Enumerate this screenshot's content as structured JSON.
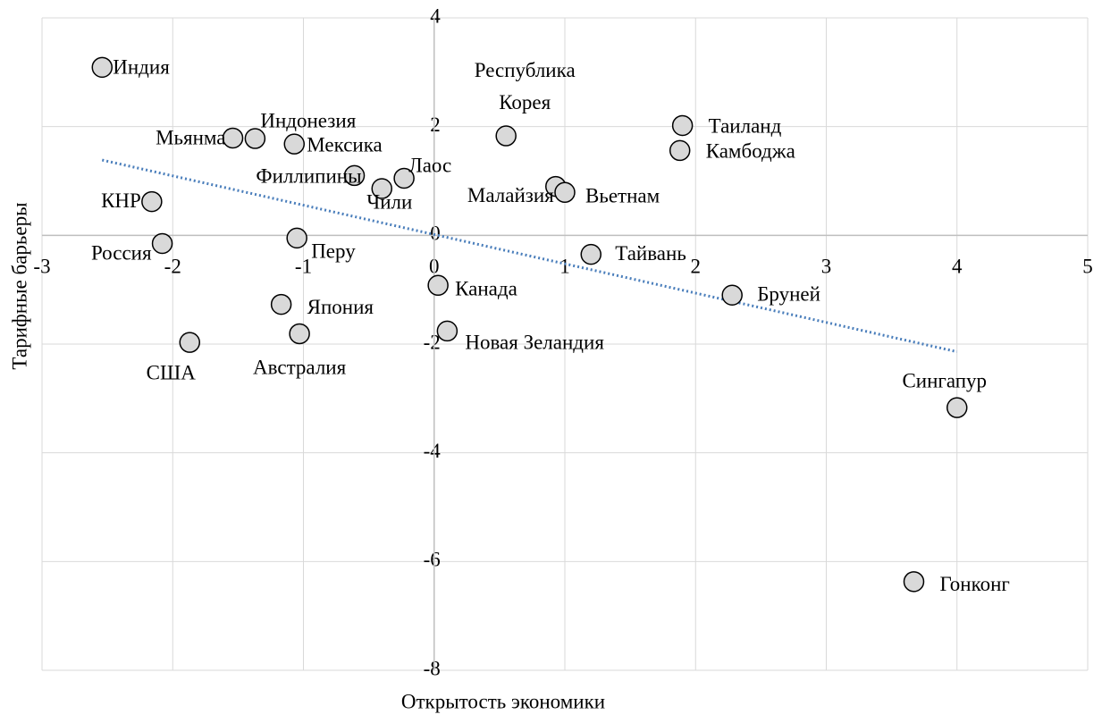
{
  "chart_data": {
    "type": "scatter",
    "x_label": "Открытость экономики",
    "y_label": "Тарифные барьеры",
    "labels": [
      "Индия",
      "Мьянма",
      "Индонезия",
      "Мексика",
      "Филлипины",
      "Чили",
      "Лаос",
      "Республика Корея",
      "Малайзия",
      "Вьетнам",
      "Таиланд",
      "Камбоджа",
      "КНР",
      "Россия",
      "Перу",
      "Тайвань",
      "Канада",
      "Бруней",
      "Япония",
      "Австралия",
      "США",
      "Новая Зеландия",
      "Сингапур",
      "Гонконг"
    ],
    "x": [
      -2.54,
      -1.54,
      -1.37,
      -1.07,
      -0.61,
      -0.4,
      -0.23,
      0.55,
      0.93,
      1.0,
      1.9,
      1.88,
      -2.16,
      -2.08,
      -1.05,
      1.2,
      0.03,
      2.28,
      -1.17,
      -1.03,
      -1.87,
      0.1,
      4.0,
      3.67
    ],
    "values": [
      3.09,
      1.79,
      1.78,
      1.68,
      1.1,
      0.86,
      1.05,
      1.83,
      0.9,
      0.79,
      2.02,
      1.56,
      0.62,
      -0.15,
      -0.05,
      -0.35,
      -0.92,
      -1.1,
      -1.27,
      -1.81,
      -1.97,
      -1.76,
      -3.17,
      -6.37
    ],
    "color": "#d9d9d9",
    "trendline": true,
    "trendline_color": "#4a7ebb",
    "xlim": [
      -3,
      5
    ],
    "xticks": [
      -3,
      -2,
      -1,
      0,
      1,
      2,
      3,
      4,
      5
    ],
    "ylim": [
      -8,
      4
    ],
    "yticks": [
      -8,
      -6,
      -4,
      -2,
      0,
      2,
      4
    ],
    "grid": true
  }
}
